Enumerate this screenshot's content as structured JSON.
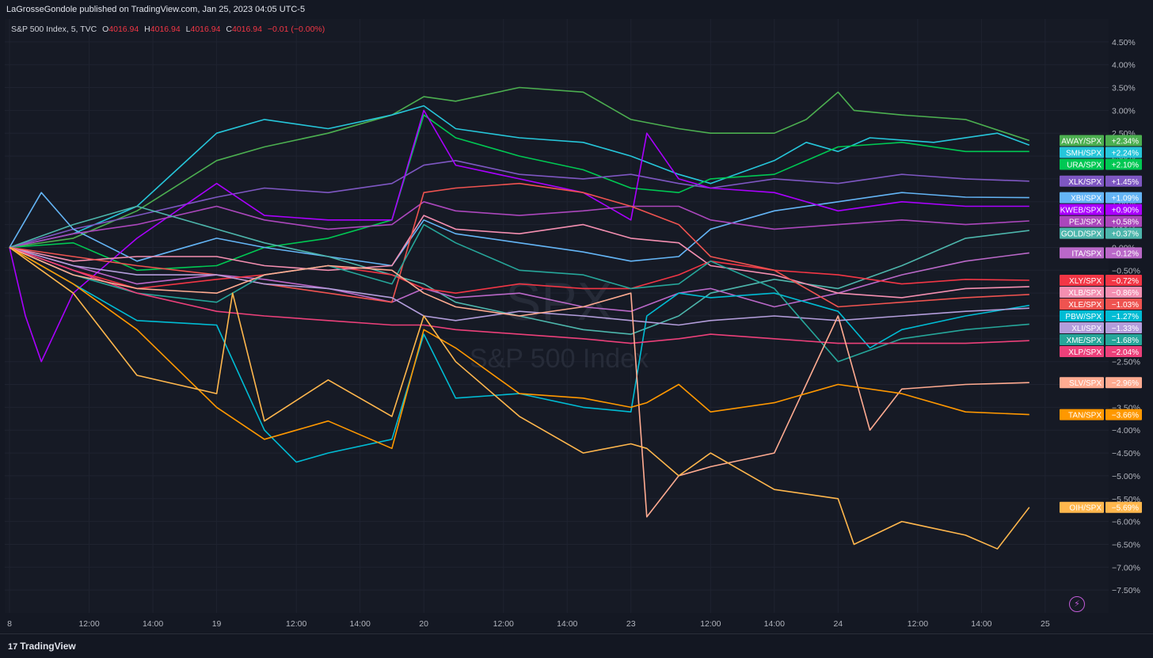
{
  "header": {
    "published": "LaGrosseGondole published on TradingView.com, Jan 25, 2023 04:05 UTC-5"
  },
  "legend": {
    "symbol": "S&P 500 Index, 5, TVC",
    "o_label": "O",
    "o": "4016.94",
    "h_label": "H",
    "h": "4016.94",
    "l_label": "L",
    "l": "4016.94",
    "c_label": "C",
    "c": "4016.94",
    "change": "−0.01 (−0.00%)"
  },
  "watermark": {
    "ticker": "SPX",
    "name": "S&P 500 Index"
  },
  "footer": {
    "brand": "TradingView",
    "logo_icon": "tradingview-logo-icon"
  },
  "colors": {
    "background": "#161a25",
    "text": "#d1d4dc",
    "red": "#f23645"
  },
  "chart_data": {
    "type": "line",
    "ylim": [
      -8.0,
      5.0
    ],
    "y_ticks": [
      "4.50%",
      "4.00%",
      "3.50%",
      "3.00%",
      "2.50%",
      "2.00%",
      "1.50%",
      "1.00%",
      "0.50%",
      "0.00%",
      "−0.50%",
      "−1.00%",
      "−1.50%",
      "−2.00%",
      "−2.50%",
      "−3.00%",
      "−3.50%",
      "−4.00%",
      "−4.50%",
      "−5.00%",
      "−5.50%",
      "−6.00%",
      "−6.50%",
      "−7.00%",
      "−7.50%"
    ],
    "y_tick_values": [
      4.5,
      4.0,
      3.5,
      3.0,
      2.5,
      2.0,
      1.5,
      1.0,
      0.5,
      0.0,
      -0.5,
      -1.0,
      -1.5,
      -2.0,
      -2.5,
      -3.0,
      -3.5,
      -4.0,
      -4.5,
      -5.0,
      -5.5,
      -6.0,
      -6.5,
      -7.0,
      -7.5
    ],
    "x_ticks": [
      "8",
      "12:00",
      "14:00",
      "19",
      "12:00",
      "14:00",
      "20",
      "12:00",
      "14:00",
      "23",
      "12:00",
      "14:00",
      "24",
      "12:00",
      "14:00",
      "25"
    ],
    "x_tick_values": [
      0,
      2.5,
      4.5,
      6.5,
      9,
      11,
      13,
      15.5,
      17.5,
      19.5,
      22,
      24,
      26,
      28.5,
      30.5,
      32.5
    ],
    "x_range": [
      0,
      33
    ],
    "x_unit": "hours of trading",
    "series": [
      {
        "name": "AWAY/SPX",
        "color": "#4caf50",
        "label": "+2.34%",
        "x": [
          0,
          2,
          4,
          6.5,
          8,
          10,
          12,
          13,
          14,
          16,
          18,
          19.5,
          21,
          22,
          24,
          25,
          26,
          26.5,
          28,
          30,
          32
        ],
        "values": [
          0,
          0.2,
          0.8,
          1.9,
          2.2,
          2.5,
          2.9,
          3.3,
          3.2,
          3.5,
          3.4,
          2.8,
          2.6,
          2.5,
          2.5,
          2.8,
          3.4,
          3.0,
          2.9,
          2.8,
          2.34
        ]
      },
      {
        "name": "SMH/SPX",
        "color": "#26c6da",
        "label": "+2.24%",
        "x": [
          0,
          2,
          4,
          6.5,
          8,
          10,
          12,
          13,
          14,
          16,
          18,
          19.5,
          21,
          22,
          24,
          25,
          26,
          27,
          29,
          31,
          32
        ],
        "values": [
          0,
          0.3,
          0.9,
          2.5,
          2.8,
          2.6,
          2.9,
          3.1,
          2.6,
          2.4,
          2.3,
          2.0,
          1.6,
          1.4,
          1.9,
          2.3,
          2.1,
          2.4,
          2.3,
          2.5,
          2.24
        ]
      },
      {
        "name": "URA/SPX",
        "color": "#00c853",
        "label": "+2.10%",
        "x": [
          0,
          2,
          4,
          6.5,
          8,
          10,
          12,
          13,
          14,
          16,
          18,
          19.5,
          21,
          22,
          24,
          26,
          28,
          30,
          32
        ],
        "values": [
          0,
          0.1,
          -0.5,
          -0.4,
          0.0,
          0.2,
          0.6,
          2.9,
          2.4,
          2.0,
          1.7,
          1.3,
          1.2,
          1.5,
          1.6,
          2.2,
          2.3,
          2.1,
          2.1
        ]
      },
      {
        "name": "XLK/SPX",
        "color": "#7e57c2",
        "label": "+1.45%",
        "x": [
          0,
          2,
          4,
          6.5,
          8,
          10,
          12,
          13,
          14,
          16,
          18,
          19.5,
          21,
          22,
          24,
          26,
          28,
          30,
          32
        ],
        "values": [
          0,
          0.4,
          0.7,
          1.1,
          1.3,
          1.2,
          1.4,
          1.8,
          1.9,
          1.6,
          1.5,
          1.6,
          1.4,
          1.3,
          1.5,
          1.4,
          1.6,
          1.5,
          1.45
        ]
      },
      {
        "name": "XBI/SPX",
        "color": "#64b5f6",
        "label": "+1.09%",
        "x": [
          0,
          1,
          2,
          4,
          6.5,
          8,
          10,
          12,
          13,
          14,
          16,
          18,
          19.5,
          21,
          22,
          24,
          26,
          28,
          30,
          32
        ],
        "values": [
          0,
          1.2,
          0.4,
          -0.3,
          0.2,
          0.0,
          -0.2,
          -0.4,
          0.6,
          0.3,
          0.1,
          -0.1,
          -0.3,
          -0.2,
          0.4,
          0.8,
          1.0,
          1.2,
          1.1,
          1.09
        ]
      },
      {
        "name": "KWEB/SPX",
        "color": "#aa00ff",
        "label": "+0.90%",
        "x": [
          0,
          0.5,
          1,
          2,
          4,
          6.5,
          8,
          10,
          12,
          13,
          14,
          16,
          18,
          19.5,
          20,
          21,
          22,
          24,
          26,
          28,
          30,
          32
        ],
        "values": [
          0,
          -1.5,
          -2.5,
          -1.0,
          0.2,
          1.4,
          0.7,
          0.6,
          0.6,
          3.0,
          1.8,
          1.5,
          1.2,
          0.6,
          2.5,
          1.5,
          1.3,
          1.2,
          0.8,
          1.0,
          0.9,
          0.9
        ]
      },
      {
        "name": "PEJ/SPX",
        "color": "#ab47bc",
        "label": "+0.58%",
        "x": [
          0,
          2,
          4,
          6.5,
          8,
          10,
          12,
          13,
          14,
          16,
          18,
          19.5,
          21,
          22,
          24,
          26,
          28,
          30,
          32
        ],
        "values": [
          0,
          0.3,
          0.5,
          0.9,
          0.6,
          0.4,
          0.5,
          1.0,
          0.8,
          0.7,
          0.8,
          0.9,
          0.9,
          0.6,
          0.4,
          0.5,
          0.6,
          0.5,
          0.58
        ]
      },
      {
        "name": "GOLD/SPX",
        "color": "#4db6ac",
        "label": "+0.37%",
        "x": [
          0,
          2,
          4,
          6.5,
          8,
          10,
          12,
          13,
          14,
          16,
          18,
          19.5,
          21,
          22,
          24,
          26,
          28,
          30,
          32
        ],
        "values": [
          0,
          0.5,
          0.9,
          0.4,
          0.1,
          -0.2,
          -0.6,
          -0.8,
          -1.2,
          -1.5,
          -1.8,
          -1.9,
          -1.5,
          -1.0,
          -0.7,
          -0.9,
          -0.4,
          0.2,
          0.37
        ]
      },
      {
        "name": "ITA/SPX",
        "color": "#ba68c8",
        "label": "−0.12%",
        "x": [
          0,
          2,
          4,
          6.5,
          8,
          10,
          12,
          13,
          14,
          16,
          18,
          19.5,
          21,
          22,
          24,
          26,
          28,
          30,
          32
        ],
        "values": [
          0,
          -0.4,
          -0.8,
          -0.6,
          -0.7,
          -0.9,
          -1.2,
          -0.9,
          -1.1,
          -1.0,
          -1.3,
          -1.4,
          -1.0,
          -0.9,
          -1.3,
          -1.0,
          -0.6,
          -0.3,
          -0.12
        ]
      },
      {
        "name": "XLY/SPX",
        "color": "#f23645",
        "label": "−0.72%",
        "x": [
          0,
          2,
          4,
          6.5,
          8,
          10,
          12,
          13,
          14,
          16,
          18,
          19.5,
          21,
          22,
          24,
          26,
          28,
          30,
          32
        ],
        "values": [
          0,
          -0.5,
          -0.9,
          -0.7,
          -0.6,
          -0.4,
          -0.6,
          -0.9,
          -1.0,
          -0.8,
          -0.9,
          -0.9,
          -0.6,
          -0.3,
          -0.5,
          -0.6,
          -0.8,
          -0.7,
          -0.72
        ]
      },
      {
        "name": "XLB/SPX",
        "color": "#f48fb1",
        "label": "−0.86%",
        "x": [
          0,
          2,
          4,
          6.5,
          8,
          10,
          12,
          13,
          14,
          16,
          18,
          19.5,
          21,
          22,
          24,
          26,
          28,
          30,
          32
        ],
        "values": [
          0,
          -0.3,
          -0.2,
          -0.2,
          -0.4,
          -0.5,
          -0.4,
          0.7,
          0.4,
          0.3,
          0.5,
          0.2,
          0.1,
          -0.4,
          -0.6,
          -1.0,
          -1.1,
          -0.9,
          -0.86
        ]
      },
      {
        "name": "XLE/SPX",
        "color": "#ef5350",
        "label": "−1.03%",
        "x": [
          0,
          2,
          4,
          6.5,
          8,
          10,
          12,
          13,
          14,
          16,
          18,
          19.5,
          21,
          22,
          24,
          26,
          28,
          30,
          32
        ],
        "values": [
          0,
          -0.2,
          -0.4,
          -0.6,
          -0.8,
          -1.0,
          -1.2,
          1.2,
          1.3,
          1.4,
          1.2,
          0.9,
          0.5,
          -0.2,
          -0.5,
          -1.3,
          -1.2,
          -1.1,
          -1.03
        ]
      },
      {
        "name": "PBW/SPX",
        "color": "#00bcd4",
        "label": "−1.27%",
        "x": [
          0,
          2,
          4,
          6.5,
          8,
          9,
          10,
          12,
          13,
          14,
          16,
          18,
          19.5,
          20,
          21,
          22,
          24,
          26,
          27,
          28,
          30,
          32
        ],
        "values": [
          0,
          -0.8,
          -1.6,
          -1.7,
          -4.0,
          -4.7,
          -4.5,
          -4.2,
          -1.9,
          -3.3,
          -3.2,
          -3.5,
          -3.6,
          -1.5,
          -1.0,
          -1.1,
          -1.0,
          -1.4,
          -2.2,
          -1.8,
          -1.5,
          -1.27
        ]
      },
      {
        "name": "XLI/SPX",
        "color": "#b39ddb",
        "label": "−1.33%",
        "x": [
          0,
          2,
          4,
          6.5,
          8,
          10,
          12,
          13,
          14,
          16,
          18,
          19.5,
          21,
          22,
          24,
          26,
          28,
          30,
          32
        ],
        "values": [
          0,
          -0.4,
          -0.6,
          -0.6,
          -0.8,
          -0.9,
          -1.1,
          -1.5,
          -1.6,
          -1.4,
          -1.5,
          -1.6,
          -1.7,
          -1.6,
          -1.5,
          -1.6,
          -1.5,
          -1.4,
          -1.33
        ]
      },
      {
        "name": "XME/SPX",
        "color": "#26a69a",
        "label": "−1.68%",
        "x": [
          0,
          2,
          4,
          6.5,
          8,
          10,
          12,
          13,
          14,
          16,
          18,
          19.5,
          21,
          22,
          24,
          26,
          28,
          30,
          32
        ],
        "values": [
          0,
          -0.6,
          -1.0,
          -1.2,
          -0.6,
          -0.4,
          -0.8,
          0.5,
          0.1,
          -0.5,
          -0.6,
          -0.9,
          -0.8,
          -0.3,
          -0.9,
          -2.5,
          -2.0,
          -1.8,
          -1.68
        ]
      },
      {
        "name": "XLP/SPX",
        "color": "#ec407a",
        "label": "−2.04%",
        "x": [
          0,
          2,
          4,
          6.5,
          8,
          10,
          12,
          13,
          14,
          16,
          18,
          19.5,
          21,
          22,
          24,
          26,
          28,
          30,
          32
        ],
        "values": [
          0,
          -0.5,
          -1.0,
          -1.4,
          -1.5,
          -1.6,
          -1.7,
          -1.7,
          -1.8,
          -1.9,
          -2.0,
          -2.1,
          -2.0,
          -1.9,
          -2.0,
          -2.1,
          -2.1,
          -2.1,
          -2.04
        ]
      },
      {
        "name": "SLV/SPX",
        "color": "#ffab91",
        "label": "−2.96%",
        "x": [
          0,
          2,
          4,
          6.5,
          8,
          10,
          12,
          13,
          14,
          16,
          18,
          19.5,
          20,
          21,
          22,
          24,
          26,
          27,
          28,
          30,
          32
        ],
        "values": [
          0,
          -0.6,
          -0.9,
          -1.0,
          -0.6,
          -0.4,
          -0.5,
          -1.0,
          -1.3,
          -1.5,
          -1.3,
          -1.0,
          -5.9,
          -5.0,
          -4.8,
          -4.5,
          -1.5,
          -4.0,
          -3.1,
          -3.0,
          -2.96
        ]
      },
      {
        "name": "TAN/SPX",
        "color": "#ff9800",
        "label": "−3.66%",
        "x": [
          0,
          2,
          4,
          6.5,
          8,
          10,
          12,
          13,
          14,
          16,
          18,
          19.5,
          20,
          21,
          22,
          24,
          26,
          28,
          30,
          32
        ],
        "values": [
          0,
          -0.8,
          -1.8,
          -3.5,
          -4.2,
          -3.8,
          -4.4,
          -1.8,
          -2.2,
          -3.2,
          -3.3,
          -3.5,
          -3.4,
          -3.0,
          -3.6,
          -3.4,
          -3.0,
          -3.2,
          -3.6,
          -3.66
        ]
      },
      {
        "name": "OIH/SPX",
        "color": "#ffb74d",
        "label": "−5.69%",
        "x": [
          0,
          2,
          4,
          6.5,
          7,
          8,
          10,
          12,
          13,
          14,
          16,
          18,
          19.5,
          20,
          21,
          22,
          24,
          26,
          26.5,
          28,
          30,
          31,
          32
        ],
        "values": [
          0,
          -1.0,
          -2.8,
          -3.2,
          -1.0,
          -3.8,
          -2.9,
          -3.7,
          -1.5,
          -2.5,
          -3.7,
          -4.5,
          -4.3,
          -4.4,
          -5.0,
          -4.5,
          -5.3,
          -5.5,
          -6.5,
          -6.0,
          -6.3,
          -6.6,
          -5.69
        ]
      }
    ]
  }
}
